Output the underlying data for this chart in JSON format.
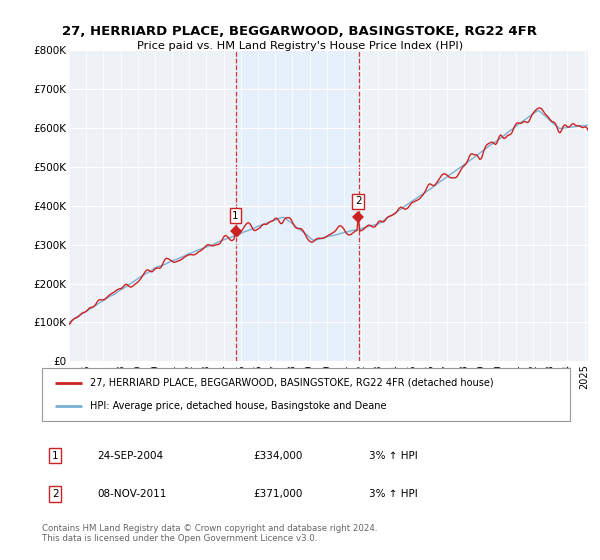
{
  "title": "27, HERRIARD PLACE, BEGGARWOOD, BASINGSTOKE, RG22 4FR",
  "subtitle": "Price paid vs. HM Land Registry's House Price Index (HPI)",
  "ylabel_ticks": [
    "£0",
    "£100K",
    "£200K",
    "£300K",
    "£400K",
    "£500K",
    "£600K",
    "£700K",
    "£800K"
  ],
  "ytick_values": [
    0,
    100000,
    200000,
    300000,
    400000,
    500000,
    600000,
    700000,
    800000
  ],
  "ylim": [
    0,
    800000
  ],
  "xlim_start": 1995.0,
  "xlim_end": 2025.2,
  "purchase1_year": 2004,
  "purchase1_month": 9,
  "purchase1_date": 2004.73,
  "purchase1_price": 334000,
  "purchase2_year": 2011,
  "purchase2_month": 11,
  "purchase2_date": 2011.85,
  "purchase2_price": 371000,
  "line_color_red": "#cc2222",
  "line_color_blue": "#7ab0d4",
  "shade_color": "#ddeeff",
  "vline_color": "#cc2222",
  "legend_label_red": "27, HERRIARD PLACE, BEGGARWOOD, BASINGSTOKE, RG22 4FR (detached house)",
  "legend_label_blue": "HPI: Average price, detached house, Basingstoke and Deane",
  "table_row1": [
    "1",
    "24-SEP-2004",
    "£334,000",
    "3% ↑ HPI"
  ],
  "table_row2": [
    "2",
    "08-NOV-2011",
    "£371,000",
    "3% ↑ HPI"
  ],
  "footer": "Contains HM Land Registry data © Crown copyright and database right 2024.\nThis data is licensed under the Open Government Licence v3.0.",
  "bg_color": "#ffffff",
  "plot_bg_color": "#eef2f7"
}
